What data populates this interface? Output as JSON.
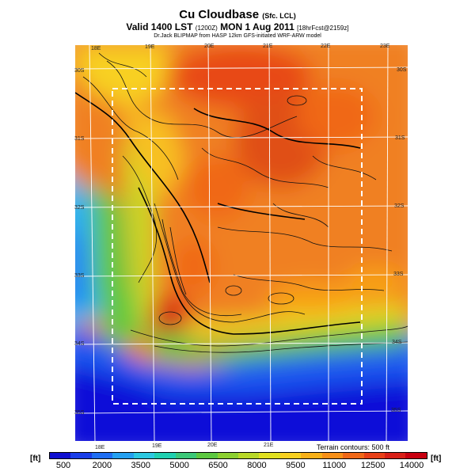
{
  "header": {
    "title": "Cu Cloudbase",
    "title_suffix": "(Sfc. LCL)",
    "valid": "Valid 1400 LST",
    "valid_z": "(1200Z)",
    "valid_date": "MON 1 Aug 2011",
    "forecast": "[18hrFcst@2159z]",
    "source": "Dr.Jack BLIPMAP from HASP 12km GFS-initiated WRF-ARW model"
  },
  "map": {
    "top_lon_labels": [
      "18E",
      "19E",
      "20E",
      "21E",
      "22E",
      "23E"
    ],
    "bottom_lon_labels": [
      "18E",
      "19E",
      "20E",
      "21E"
    ],
    "left_lat_labels": [
      "30S",
      "31S",
      "32S",
      "33S",
      "34S",
      "35S"
    ],
    "right_lat_labels": [
      "30S",
      "31S",
      "32S",
      "33S",
      "34S",
      "35S"
    ],
    "terrain_note": "Terrain contours: 500 ft"
  },
  "colorbar": {
    "unit_left": "[ft]",
    "unit_right": "[ft]",
    "ticks": [
      "500",
      "2000",
      "3500",
      "5000",
      "6500",
      "8000",
      "9500",
      "11000",
      "12500",
      "14000"
    ],
    "colors": [
      "#1010d0",
      "#1a3ee8",
      "#1f6ef2",
      "#25a0f0",
      "#2cc8e0",
      "#20d0b0",
      "#3cc878",
      "#5cc840",
      "#8cd030",
      "#b8d828",
      "#e0e020",
      "#f8d020",
      "#f8b018",
      "#f89018",
      "#f06818",
      "#e84018",
      "#d82018",
      "#c80010"
    ]
  }
}
